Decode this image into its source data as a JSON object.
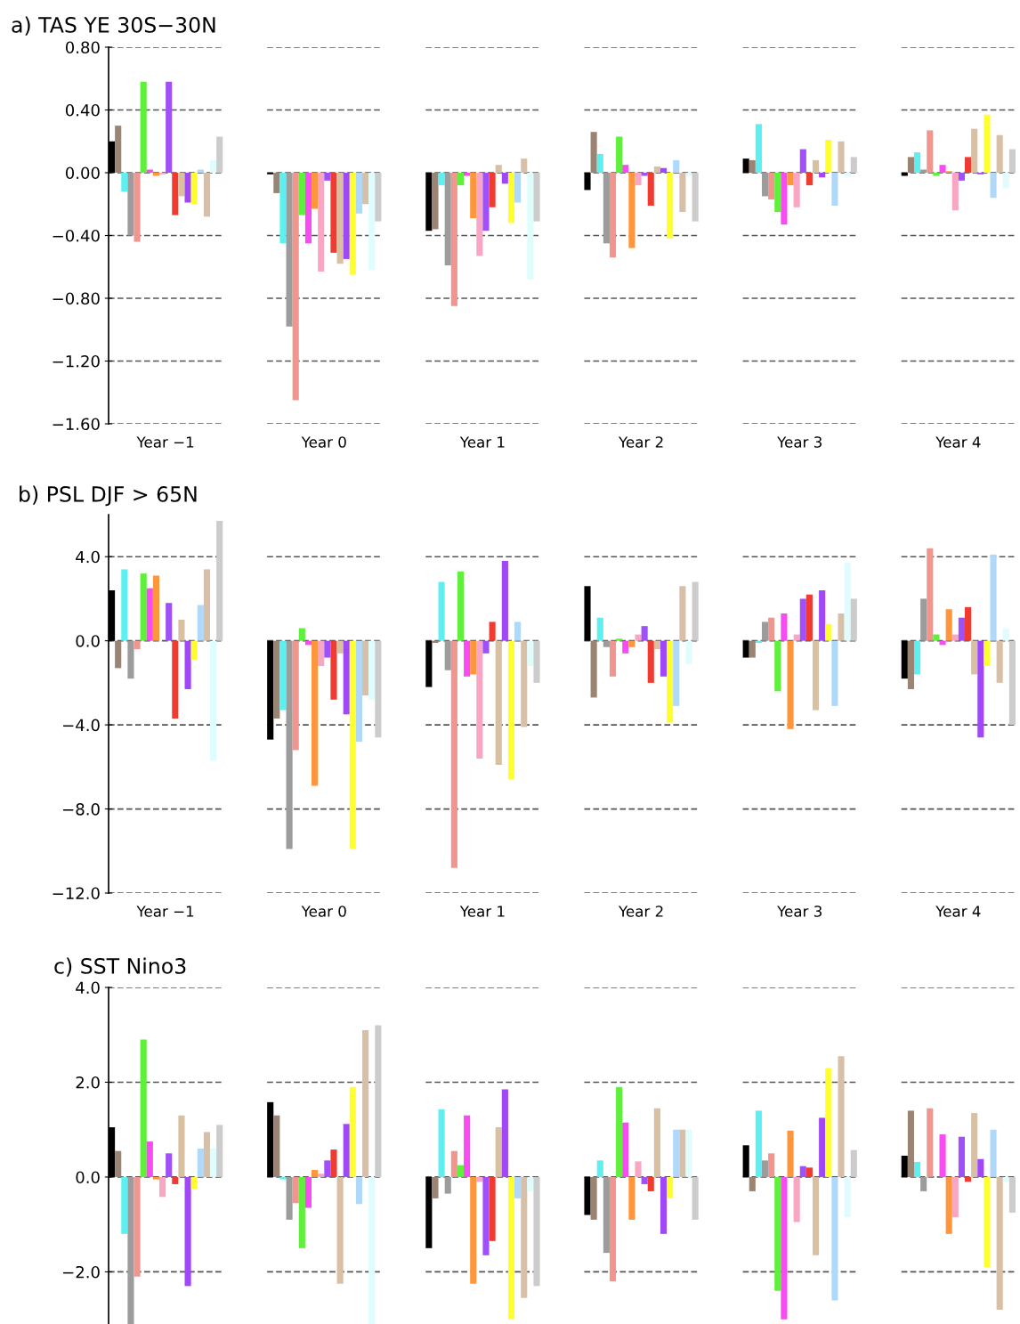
{
  "chart_data": [
    {
      "type": "bar",
      "title": "a) TAS YE 30S−30N",
      "categories": [
        "Year −1",
        "Year 0",
        "Year 1",
        "Year 2",
        "Year 3",
        "Year 4"
      ],
      "ylim": [
        -1.6,
        0.8
      ],
      "yticks": [
        {
          "value": 0.8,
          "label": "0.80"
        },
        {
          "value": 0.4,
          "label": "0.40"
        },
        {
          "value": 0,
          "label": "0.00"
        },
        {
          "value": -0.4,
          "label": "−0.40"
        },
        {
          "value": -0.8,
          "label": "−0.80"
        },
        {
          "value": -1.2,
          "label": "−1.20"
        },
        {
          "value": -1.6,
          "label": "−1.60"
        }
      ],
      "grid": "y",
      "series": [
        {
          "color": "#000000",
          "values": [
            0.2,
            -0.01,
            -0.37,
            -0.11,
            0.09,
            -0.02
          ]
        },
        {
          "color": "#9c8474",
          "values": [
            0.3,
            -0.13,
            -0.36,
            0.26,
            0.08,
            0.1
          ]
        },
        {
          "color": "#5ef0f0",
          "values": [
            -0.12,
            -0.45,
            -0.08,
            0.12,
            0.31,
            0.13
          ]
        },
        {
          "color": "#9c9c9c",
          "values": [
            -0.4,
            -0.98,
            -0.59,
            -0.45,
            -0.15,
            0.02
          ]
        },
        {
          "color": "#f0968e",
          "values": [
            -0.44,
            -1.45,
            -0.85,
            -0.54,
            -0.17,
            0.27
          ]
        },
        {
          "color": "#5ef03a",
          "values": [
            0.58,
            -0.27,
            -0.08,
            0.23,
            -0.25,
            -0.02
          ]
        },
        {
          "color": "#f64cf2",
          "values": [
            0.02,
            -0.45,
            -0.02,
            0.05,
            -0.33,
            0.05
          ]
        },
        {
          "color": "#ff963c",
          "values": [
            -0.02,
            -0.23,
            -0.29,
            -0.48,
            -0.08,
            0.01
          ]
        },
        {
          "color": "#f8a6c4",
          "values": [
            -0.01,
            -0.63,
            -0.53,
            -0.08,
            -0.22,
            -0.24
          ]
        },
        {
          "color": "#a050f8",
          "values": [
            0.58,
            -0.05,
            -0.37,
            -0.02,
            0.15,
            -0.05
          ]
        },
        {
          "color": "#f03c30",
          "values": [
            -0.27,
            -0.51,
            -0.22,
            -0.21,
            -0.08,
            0.1
          ]
        },
        {
          "color": "#d8c0a0",
          "values": [
            -0.15,
            -0.58,
            0.05,
            0.04,
            0.08,
            0.28
          ]
        },
        {
          "color": "#a048f8",
          "values": [
            -0.19,
            -0.55,
            -0.07,
            0.03,
            -0.03,
            -0.01
          ]
        },
        {
          "color": "#ffff30",
          "values": [
            -0.2,
            -0.65,
            -0.32,
            -0.42,
            0.21,
            0.37
          ]
        },
        {
          "color": "#b0d8f8",
          "values": [
            0.02,
            -0.26,
            -0.19,
            0.08,
            -0.21,
            -0.16
          ]
        },
        {
          "color": "#d8c0a8",
          "values": [
            -0.28,
            -0.2,
            0.09,
            -0.25,
            0.2,
            0.24
          ]
        },
        {
          "color": "#e0fcfc",
          "values": [
            0.08,
            -0.62,
            -0.68,
            -0.02,
            -0.02,
            -0.1
          ]
        },
        {
          "color": "#cccccc",
          "values": [
            0.23,
            -0.31,
            -0.31,
            -0.31,
            0.1,
            0.15
          ]
        }
      ]
    },
    {
      "type": "bar",
      "title": "b) PSL DJF > 65N",
      "categories": [
        "Year −1",
        "Year 0",
        "Year 1",
        "Year 2",
        "Year 3",
        "Year 4"
      ],
      "ylim": [
        -12,
        6
      ],
      "yticks": [
        {
          "value": 4,
          "label": "4.0"
        },
        {
          "value": 0,
          "label": "0.0"
        },
        {
          "value": -4,
          "label": "−4.0"
        },
        {
          "value": -8,
          "label": "−8.0"
        },
        {
          "value": -12,
          "label": "−12.0"
        }
      ],
      "grid": "y",
      "series": [
        {
          "color": "#000000",
          "values": [
            2.4,
            -4.7,
            -2.2,
            2.6,
            -0.8,
            -1.8
          ]
        },
        {
          "color": "#9c8474",
          "values": [
            -1.3,
            -3.7,
            -0.1,
            -2.7,
            -0.8,
            -2.3
          ]
        },
        {
          "color": "#5ef0f0",
          "values": [
            3.4,
            -3.3,
            2.8,
            1.1,
            -0.1,
            -1.6
          ]
        },
        {
          "color": "#9c9c9c",
          "values": [
            -1.8,
            -9.9,
            -1.4,
            -0.3,
            0.9,
            2.0
          ]
        },
        {
          "color": "#f0968e",
          "values": [
            -0.4,
            -5.2,
            -10.8,
            -1.7,
            1.1,
            4.4
          ]
        },
        {
          "color": "#5ef03a",
          "values": [
            3.2,
            0.6,
            3.3,
            0.1,
            -2.4,
            0.3
          ]
        },
        {
          "color": "#f64cf2",
          "values": [
            2.5,
            -0.2,
            -1.7,
            -0.6,
            1.3,
            -0.2
          ]
        },
        {
          "color": "#ff963c",
          "values": [
            3.1,
            -6.9,
            -1.6,
            -0.3,
            -4.2,
            1.5
          ]
        },
        {
          "color": "#f8a6c4",
          "values": [
            0.0,
            -1.2,
            -5.6,
            0.3,
            0.3,
            0.3
          ]
        },
        {
          "color": "#a050f8",
          "values": [
            1.8,
            -0.8,
            -0.6,
            0.7,
            2.0,
            1.1
          ]
        },
        {
          "color": "#f03c30",
          "values": [
            -3.7,
            -2.8,
            0.9,
            -2.0,
            2.2,
            1.6
          ]
        },
        {
          "color": "#d8c0a0",
          "values": [
            1.0,
            -0.6,
            -5.9,
            -0.4,
            -3.3,
            -1.6
          ]
        },
        {
          "color": "#a048f8",
          "values": [
            -2.3,
            -3.5,
            3.8,
            -1.7,
            2.4,
            -4.6
          ]
        },
        {
          "color": "#ffff30",
          "values": [
            -0.9,
            -9.9,
            -6.6,
            -3.9,
            0.8,
            -1.2
          ]
        },
        {
          "color": "#b0d8f8",
          "values": [
            1.7,
            -4.8,
            0.9,
            -3.1,
            -3.1,
            4.1
          ]
        },
        {
          "color": "#d8c0a8",
          "values": [
            3.4,
            -2.6,
            -4.1,
            2.6,
            1.3,
            -2.0
          ]
        },
        {
          "color": "#e0fcfc",
          "values": [
            -5.7,
            -2.8,
            -1.2,
            -1.1,
            3.7,
            0.6
          ]
        },
        {
          "color": "#cccccc",
          "values": [
            5.7,
            -4.6,
            -2.0,
            2.8,
            2.0,
            -4.0
          ]
        }
      ]
    },
    {
      "type": "bar",
      "title": "c) SST Nino3",
      "categories": [
        null,
        null,
        null,
        null,
        null,
        null
      ],
      "ylim": [
        -3.1,
        4.0
      ],
      "yticks": [
        {
          "value": 4,
          "label": "4.0"
        },
        {
          "value": 2,
          "label": "2.0"
        },
        {
          "value": 0,
          "label": "0.0"
        },
        {
          "value": -2,
          "label": "−2.0"
        }
      ],
      "grid": "y",
      "series": [
        {
          "color": "#000000",
          "values": [
            1.05,
            1.58,
            -1.5,
            -0.8,
            0.67,
            0.45
          ]
        },
        {
          "color": "#9c8474",
          "values": [
            0.55,
            1.3,
            -0.45,
            -0.9,
            -0.3,
            1.4
          ]
        },
        {
          "color": "#5ef0f0",
          "values": [
            -1.2,
            -0.05,
            1.43,
            0.35,
            1.4,
            0.32
          ]
        },
        {
          "color": "#9c9c9c",
          "values": [
            -3.1,
            -0.9,
            -0.35,
            -1.6,
            0.35,
            -0.3
          ]
        },
        {
          "color": "#f0968e",
          "values": [
            -2.1,
            -0.55,
            0.55,
            -2.2,
            0.5,
            1.45
          ]
        },
        {
          "color": "#5ef03a",
          "values": [
            2.9,
            -1.5,
            0.25,
            1.9,
            -2.4,
            0.0
          ]
        },
        {
          "color": "#f64cf2",
          "values": [
            0.75,
            -0.65,
            1.3,
            1.15,
            -3.0,
            0.9
          ]
        },
        {
          "color": "#ff963c",
          "values": [
            -0.05,
            0.15,
            -2.25,
            -0.9,
            0.98,
            -1.2
          ]
        },
        {
          "color": "#f8a6c4",
          "values": [
            -0.42,
            0.07,
            -0.1,
            0.33,
            -0.95,
            -0.85
          ]
        },
        {
          "color": "#a050f8",
          "values": [
            0.5,
            0.35,
            -1.65,
            -0.15,
            0.23,
            0.85
          ]
        },
        {
          "color": "#f03c30",
          "values": [
            -0.15,
            0.58,
            -1.35,
            -0.3,
            0.2,
            -0.1
          ]
        },
        {
          "color": "#d8c0a0",
          "values": [
            1.3,
            -2.25,
            1.05,
            1.45,
            -1.65,
            1.35
          ]
        },
        {
          "color": "#a048f8",
          "values": [
            -2.3,
            1.12,
            1.85,
            -1.2,
            1.25,
            0.38
          ]
        },
        {
          "color": "#ffff30",
          "values": [
            -0.25,
            1.9,
            -3.0,
            -0.45,
            2.3,
            -1.9
          ]
        },
        {
          "color": "#b0d8f8",
          "values": [
            0.6,
            -0.57,
            -0.45,
            1.0,
            -2.6,
            1.0
          ]
        },
        {
          "color": "#d8c0a8",
          "values": [
            0.95,
            3.1,
            -2.55,
            1.0,
            2.55,
            -2.8
          ]
        },
        {
          "color": "#e0fcfc",
          "values": [
            0.6,
            -3.1,
            -0.3,
            1.0,
            -0.85,
            -0.1
          ]
        },
        {
          "color": "#cccccc",
          "values": [
            1.1,
            3.2,
            -2.3,
            -0.9,
            0.57,
            -0.75
          ]
        }
      ]
    }
  ]
}
